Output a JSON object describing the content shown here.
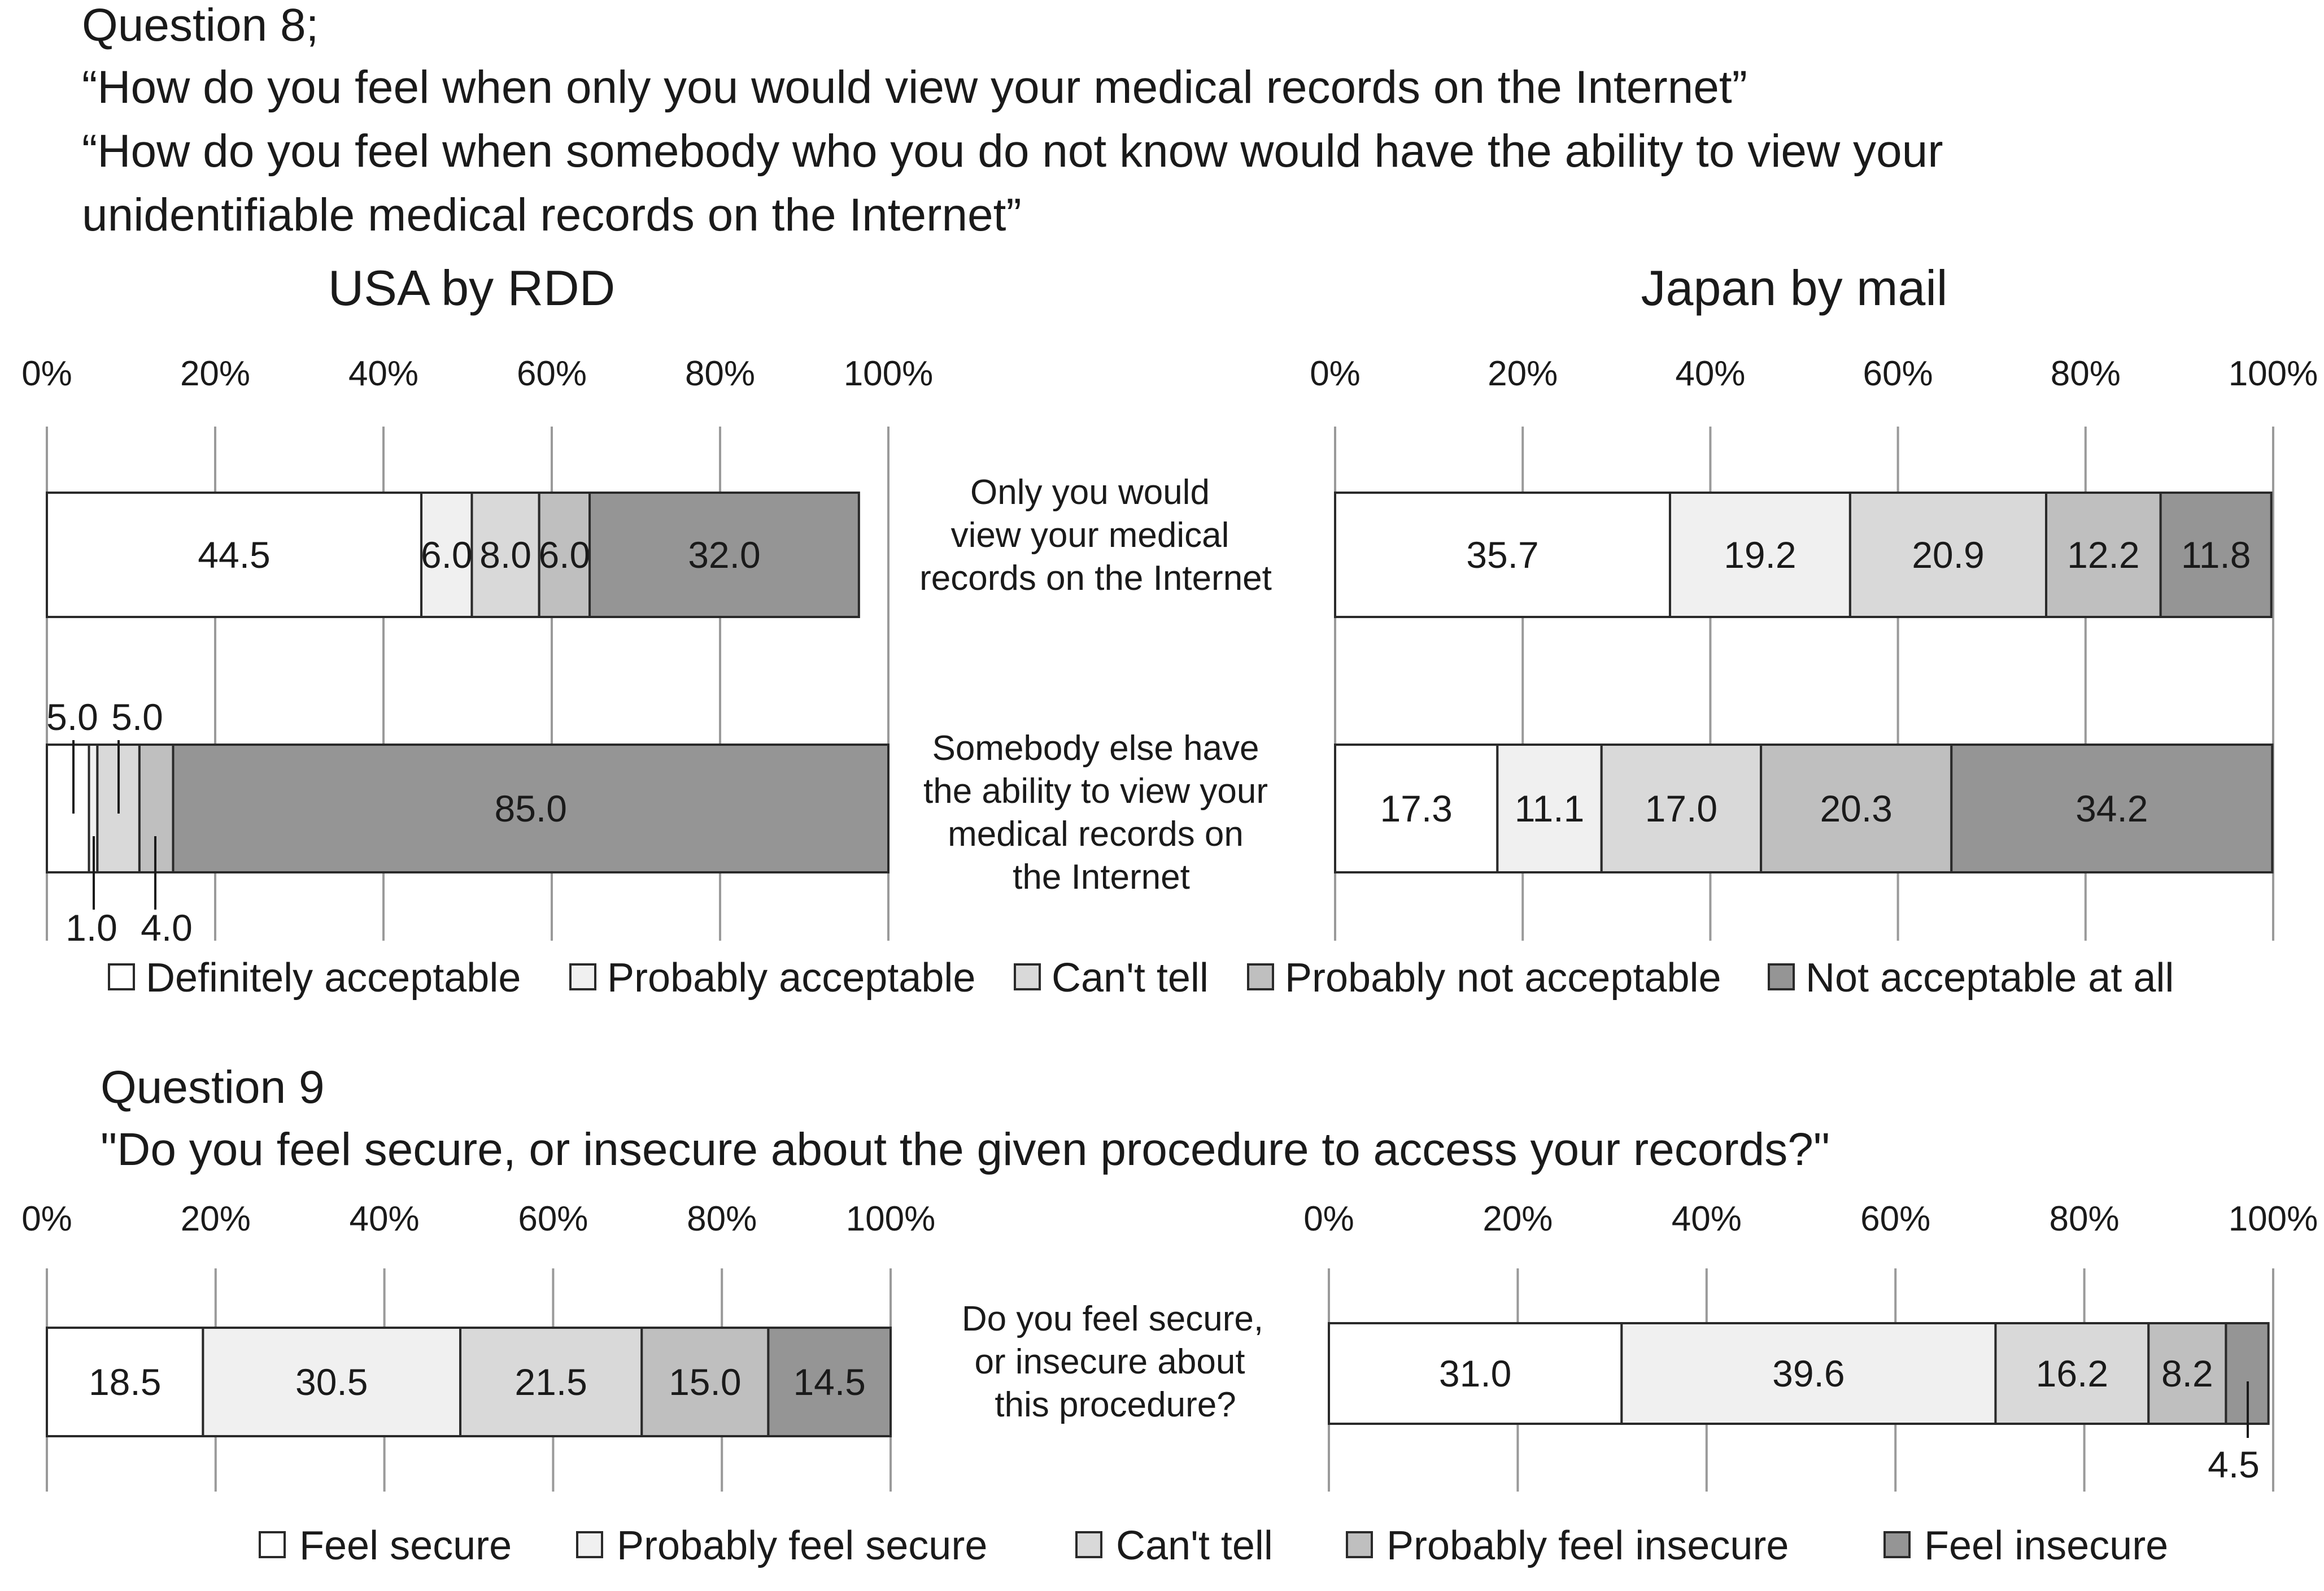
{
  "header": {
    "q8_title": "Question 8;",
    "q8_line1": "“How do you feel when only you would view your medical records on the Internet”",
    "q8_line2": "“How do you feel when somebody who you do not know would have the ability to view your",
    "q8_line3": "unidentifiable medical records on the Internet”",
    "q9_title": "Question 9",
    "q9_line1": "\"Do you feel secure, or insecure about the given  procedure to access your records?\""
  },
  "columns": {
    "left": "USA by RDD",
    "right": "Japan by mail"
  },
  "ticks": [
    "0%",
    "20%",
    "40%",
    "60%",
    "80%",
    "100%"
  ],
  "row_labels": {
    "q8_row1": [
      "Only you would",
      "view your medical",
      "records on the Internet"
    ],
    "q8_row2": [
      "Somebody else have",
      "the ability to view your",
      "medical records on",
      "the Internet"
    ],
    "q9_row": [
      "Do you feel secure,",
      "or insecure about",
      "this procedure?"
    ]
  },
  "colors": [
    "#ffffff",
    "#f0f0f0",
    "#d9d9d9",
    "#bfbfbf",
    "#959595"
  ],
  "chart_data": [
    {
      "type": "bar",
      "orientation": "horizontal-stacked-percent",
      "title": "USA by RDD",
      "question": "Question 8",
      "xlim": [
        0,
        100
      ],
      "series_names": [
        "Definitely acceptable",
        "Probably acceptable",
        "Can't tell",
        "Probably not acceptable",
        "Not acceptable at all"
      ],
      "rows": [
        {
          "label": "Only you would view your medical records on the Internet",
          "values": [
            44.5,
            6.0,
            8.0,
            6.0,
            32.0
          ]
        },
        {
          "label": "Somebody else have the ability to view your medical records on the Internet",
          "values": [
            5.0,
            1.0,
            5.0,
            4.0,
            85.0
          ]
        }
      ]
    },
    {
      "type": "bar",
      "orientation": "horizontal-stacked-percent",
      "title": "Japan by mail",
      "question": "Question 8",
      "xlim": [
        0,
        100
      ],
      "series_names": [
        "Definitely acceptable",
        "Probably acceptable",
        "Can't tell",
        "Probably not acceptable",
        "Not acceptable at all"
      ],
      "rows": [
        {
          "label": "Only you would view your medical records on the Internet",
          "values": [
            35.7,
            19.2,
            20.9,
            12.2,
            11.8
          ]
        },
        {
          "label": "Somebody else have the ability to view your medical records on the Internet",
          "values": [
            17.3,
            11.1,
            17.0,
            20.3,
            34.2
          ]
        }
      ]
    },
    {
      "type": "bar",
      "orientation": "horizontal-stacked-percent",
      "title": "USA by RDD",
      "question": "Question 9",
      "xlim": [
        0,
        100
      ],
      "series_names": [
        "Feel secure",
        "Probably feel secure",
        "Can't tell",
        "Probably feel insecure",
        "Feel insecure"
      ],
      "rows": [
        {
          "label": "Do you feel secure, or insecure about this procedure?",
          "values": [
            18.5,
            30.5,
            21.5,
            15.0,
            14.5
          ]
        }
      ]
    },
    {
      "type": "bar",
      "orientation": "horizontal-stacked-percent",
      "title": "Japan by mail",
      "question": "Question 9",
      "xlim": [
        0,
        100
      ],
      "series_names": [
        "Feel secure",
        "Probably feel secure",
        "Can't tell",
        "Probably feel insecure",
        "Feel insecure"
      ],
      "rows": [
        {
          "label": "Do you feel secure, or insecure about this procedure?",
          "values": [
            31.0,
            39.6,
            16.2,
            8.2,
            4.5
          ]
        }
      ]
    }
  ],
  "legends": {
    "q8": [
      "Definitely acceptable",
      "Probably acceptable",
      "Can't tell",
      "Probably not acceptable",
      "Not acceptable at all"
    ],
    "q9": [
      "Feel secure",
      "Probably feel secure",
      "Can't tell",
      "Probably feel insecure",
      "Feel insecure"
    ]
  }
}
